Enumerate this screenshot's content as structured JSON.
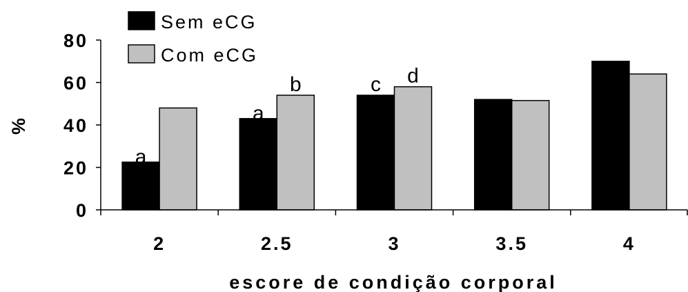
{
  "chart_data": {
    "type": "bar",
    "categories": [
      "2",
      "2.5",
      "3",
      "3.5",
      "4"
    ],
    "series": [
      {
        "name": "Sem eCG",
        "values": [
          22.5,
          43,
          54,
          52,
          70
        ],
        "color": "#000000",
        "labels": [
          "a",
          "a",
          "c",
          "",
          ""
        ]
      },
      {
        "name": "Com eCG",
        "values": [
          48,
          54,
          58,
          51.5,
          64
        ],
        "color": "#c0c0c0",
        "labels": [
          "",
          "b",
          "d",
          "",
          ""
        ]
      }
    ],
    "xlabel": "escore de condição corporal",
    "ylabel": "%",
    "ylim": [
      0,
      80
    ],
    "yticks": [
      "0",
      "20",
      "40",
      "60",
      "80"
    ],
    "grid": false,
    "legend": "top-left"
  }
}
